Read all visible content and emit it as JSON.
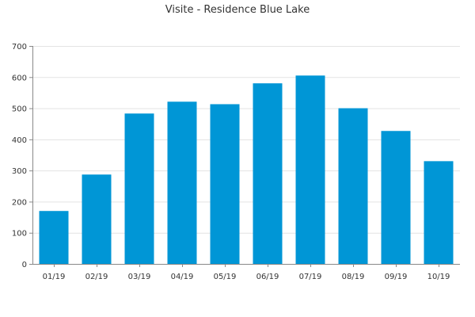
{
  "chart_data": {
    "type": "bar",
    "title": "Visite - Residence Blue Lake",
    "xlabel": "",
    "ylabel": "",
    "categories": [
      "01/19",
      "02/19",
      "03/19",
      "04/19",
      "05/19",
      "06/19",
      "07/19",
      "08/19",
      "09/19",
      "10/19"
    ],
    "values": [
      170,
      287,
      483,
      521,
      513,
      580,
      605,
      500,
      427,
      330
    ],
    "ylim": [
      0,
      700
    ],
    "yticks": [
      0,
      100,
      200,
      300,
      400,
      500,
      600,
      700
    ],
    "grid": true,
    "legend": "none",
    "bar_color": "#0096D6"
  }
}
